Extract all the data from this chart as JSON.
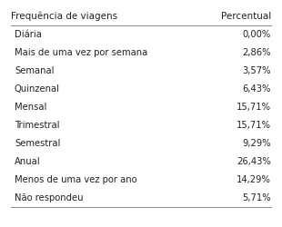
{
  "col1_header": "Frequência de viagens",
  "col2_header": "Percentual",
  "rows": [
    [
      "Diária",
      "0,00%"
    ],
    [
      "Mais de uma vez por semana",
      "2,86%"
    ],
    [
      "Semanal",
      "3,57%"
    ],
    [
      "Quinzenal",
      "6,43%"
    ],
    [
      "Mensal",
      "15,71%"
    ],
    [
      "Trimestral",
      "15,71%"
    ],
    [
      "Semestral",
      "9,29%"
    ],
    [
      "Anual",
      "26,43%"
    ],
    [
      "Menos de uma vez por ano",
      "14,29%"
    ],
    [
      "Não respondeu",
      "5,71%"
    ]
  ],
  "background_color": "#ffffff",
  "text_color": "#222222",
  "header_fontsize": 7.5,
  "row_fontsize": 7.2,
  "line_color": "#888888"
}
